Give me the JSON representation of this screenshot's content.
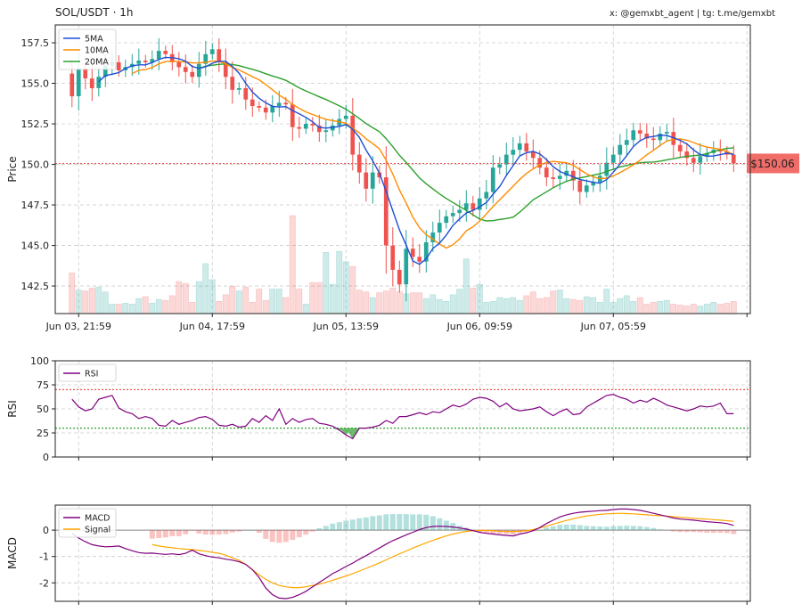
{
  "header": {
    "title": "SOL/USDT · 1h",
    "watermark": "x: @gemxbt_agent | tg: t.me/gemxbt"
  },
  "chart_data": [
    {
      "type": "candlestick",
      "ylabel": "Price",
      "ylim": [
        140.8,
        158.6
      ],
      "yticks": [
        "142.5",
        "145.0",
        "147.5",
        "150.0",
        "152.5",
        "155.0",
        "157.5"
      ],
      "xtick_labels": [
        "Jun 03, 21:59",
        "Jun 04, 17:59",
        "Jun 05, 13:59",
        "Jun 06, 09:59",
        "Jun 07, 05:59"
      ],
      "grid": true,
      "legend_position": "top-left",
      "legend": [
        "5MA",
        "10MA",
        "20MA"
      ],
      "colors": {
        "up": "#26a69a",
        "down": "#ef5350",
        "ma5": "#1f4fd6",
        "ma10": "#ff8c00",
        "ma20": "#2ca02c",
        "current": "#ef5350"
      },
      "current_price": 150.06,
      "current_price_label": "$150.06",
      "closes": [
        154.2,
        155.9,
        155.3,
        154.7,
        155.4,
        156.1,
        156.3,
        155.8,
        156.0,
        156.2,
        156.4,
        156.3,
        156.5,
        157.0,
        156.8,
        156.3,
        156.0,
        155.7,
        155.4,
        156.2,
        156.8,
        157.1,
        156.3,
        155.4,
        154.6,
        154.7,
        154.0,
        153.6,
        153.5,
        153.2,
        153.6,
        153.8,
        153.7,
        152.3,
        152.2,
        152.5,
        152.4,
        152.0,
        152.1,
        152.4,
        152.8,
        153.0,
        150.6,
        149.5,
        148.5,
        149.5,
        149.2,
        145.0,
        143.5,
        142.6,
        144.8,
        144.3,
        144.0,
        145.2,
        145.8,
        146.4,
        146.8,
        147.0,
        147.2,
        147.6,
        147.2,
        147.9,
        148.3,
        149.8,
        150.0,
        150.6,
        150.9,
        151.3,
        150.8,
        150.4,
        149.8,
        149.2,
        149.1,
        149.3,
        149.6,
        149.0,
        148.3,
        148.7,
        148.9,
        149.3,
        150.1,
        150.6,
        151.2,
        151.5,
        152.1,
        151.9,
        151.6,
        151.5,
        151.9,
        152.0,
        151.2,
        150.8,
        150.4,
        150.1,
        150.5,
        150.7,
        150.9,
        150.8,
        150.6,
        150.06
      ],
      "volumes": [
        4.3,
        2.5,
        2.4,
        2.7,
        2.8,
        2.3,
        1.0,
        1.0,
        1.1,
        1.0,
        1.6,
        1.8,
        1.1,
        1.5,
        1.4,
        1.9,
        3.4,
        3.2,
        1.2,
        3.4,
        5.3,
        3.6,
        1.3,
        2.0,
        2.9,
        2.4,
        2.8,
        1.2,
        2.6,
        1.4,
        2.6,
        2.6,
        1.7,
        10.4,
        2.6,
        1.0,
        3.3,
        3.3,
        6.5,
        3.1,
        6.6,
        5.5,
        5.0,
        2.5,
        2.3,
        1.7,
        2.2,
        2.4,
        2.7,
        2.3,
        2.1,
        2.2,
        2.2,
        1.6,
        2.0,
        1.5,
        1.3,
        2.0,
        2.6,
        5.8,
        2.7,
        3.1,
        1.2,
        1.3,
        1.7,
        1.6,
        1.7,
        1.4,
        1.9,
        2.3,
        1.6,
        1.7,
        2.4,
        2.5,
        1.6,
        1.5,
        1.4,
        1.8,
        1.7,
        1.2,
        2.6,
        1.2,
        1.6,
        1.9,
        1.3,
        1.7,
        1.0,
        1.2,
        1.3,
        1.4,
        1.0,
        0.9,
        0.8,
        1.0,
        0.8,
        1.0,
        1.2,
        1.0,
        1.1,
        1.3
      ]
    },
    {
      "type": "line",
      "ylabel": "RSI",
      "ylim": [
        0,
        100
      ],
      "yticks": [
        "0",
        "25",
        "50",
        "75",
        "100"
      ],
      "overbought": 70,
      "oversold": 30,
      "grid": true,
      "legend_position": "top-left",
      "legend": [
        "RSI"
      ],
      "colors": {
        "rsi": "#800080",
        "overbought": "#ef5350",
        "oversold": "#2ca02c",
        "fill": "#2ca02c"
      },
      "series": [
        {
          "name": "RSI",
          "values": [
            60,
            52,
            48,
            50,
            60,
            62,
            64,
            51,
            47,
            45,
            40,
            42,
            40,
            33,
            32,
            38,
            34,
            36,
            38,
            41,
            42,
            39,
            33,
            32,
            34,
            31,
            32,
            40,
            36,
            43,
            38,
            50,
            34,
            40,
            36,
            39,
            40,
            35,
            34,
            32,
            28,
            23,
            19,
            30,
            30,
            31,
            33,
            38,
            35,
            42,
            42,
            44,
            46,
            44,
            47,
            46,
            50,
            54,
            52,
            55,
            60,
            62,
            61,
            58,
            52,
            56,
            50,
            48,
            49,
            50,
            52,
            47,
            43,
            47,
            50,
            44,
            45,
            52,
            56,
            60,
            64,
            65,
            62,
            60,
            56,
            59,
            57,
            61,
            58,
            54,
            52,
            50,
            48,
            50,
            53,
            52,
            53,
            56,
            45,
            45
          ]
        }
      ]
    },
    {
      "type": "line",
      "ylabel": "MACD",
      "ylim": [
        -2.7,
        0.95
      ],
      "yticks": [
        "-2",
        "-1",
        "0"
      ],
      "grid": true,
      "legend_position": "top-left",
      "legend": [
        "MACD",
        "Signal"
      ],
      "colors": {
        "macd": "#800080",
        "signal": "#ffa500",
        "hist_pos": "#26a69a",
        "hist_neg": "#ef5350"
      },
      "series": [
        {
          "name": "MACD",
          "values": [
            -0.12,
            -0.3,
            -0.44,
            -0.55,
            -0.6,
            -0.63,
            -0.62,
            -0.6,
            -0.7,
            -0.78,
            -0.85,
            -0.88,
            -0.87,
            -0.9,
            -0.92,
            -0.9,
            -0.93,
            -0.88,
            -0.76,
            -0.9,
            -0.97,
            -1.02,
            -1.05,
            -1.1,
            -1.14,
            -1.2,
            -1.3,
            -1.5,
            -1.8,
            -2.2,
            -2.45,
            -2.58,
            -2.6,
            -2.55,
            -2.45,
            -2.32,
            -2.15,
            -1.98,
            -1.82,
            -1.65,
            -1.52,
            -1.38,
            -1.25,
            -1.1,
            -0.97,
            -0.82,
            -0.68,
            -0.53,
            -0.4,
            -0.29,
            -0.18,
            -0.08,
            0.02,
            0.1,
            0.14,
            0.15,
            0.14,
            0.12,
            0.08,
            0.04,
            -0.02,
            -0.08,
            -0.12,
            -0.15,
            -0.18,
            -0.2,
            -0.22,
            -0.15,
            -0.1,
            -0.02,
            0.1,
            0.25,
            0.38,
            0.5,
            0.58,
            0.64,
            0.68,
            0.7,
            0.72,
            0.74,
            0.75,
            0.78,
            0.8,
            0.8,
            0.78,
            0.75,
            0.7,
            0.64,
            0.58,
            0.52,
            0.46,
            0.42,
            0.4,
            0.38,
            0.35,
            0.32,
            0.3,
            0.28,
            0.25,
            0.18
          ]
        },
        {
          "name": "Signal",
          "values": [
            null,
            null,
            null,
            null,
            null,
            null,
            null,
            null,
            null,
            null,
            null,
            null,
            -0.55,
            -0.6,
            -0.64,
            -0.67,
            -0.7,
            -0.72,
            -0.74,
            -0.77,
            -0.8,
            -0.84,
            -0.88,
            -0.95,
            -1.05,
            -1.15,
            -1.3,
            -1.5,
            -1.7,
            -1.87,
            -2.0,
            -2.1,
            -2.15,
            -2.18,
            -2.18,
            -2.15,
            -2.1,
            -2.05,
            -1.98,
            -1.9,
            -1.82,
            -1.74,
            -1.65,
            -1.55,
            -1.45,
            -1.35,
            -1.24,
            -1.13,
            -1.01,
            -0.9,
            -0.79,
            -0.68,
            -0.58,
            -0.48,
            -0.39,
            -0.3,
            -0.22,
            -0.15,
            -0.09,
            -0.05,
            -0.02,
            -0.01,
            -0.01,
            -0.02,
            -0.04,
            -0.05,
            -0.05,
            -0.04,
            -0.02,
            0.02,
            0.08,
            0.15,
            0.23,
            0.3,
            0.37,
            0.43,
            0.49,
            0.54,
            0.57,
            0.6,
            0.62,
            0.63,
            0.64,
            0.63,
            0.62,
            0.6,
            0.58,
            0.56,
            0.55,
            0.53,
            0.51,
            0.49,
            0.47,
            0.45,
            0.43,
            0.42,
            0.4,
            0.38,
            0.36,
            0.33
          ]
        }
      ]
    }
  ]
}
